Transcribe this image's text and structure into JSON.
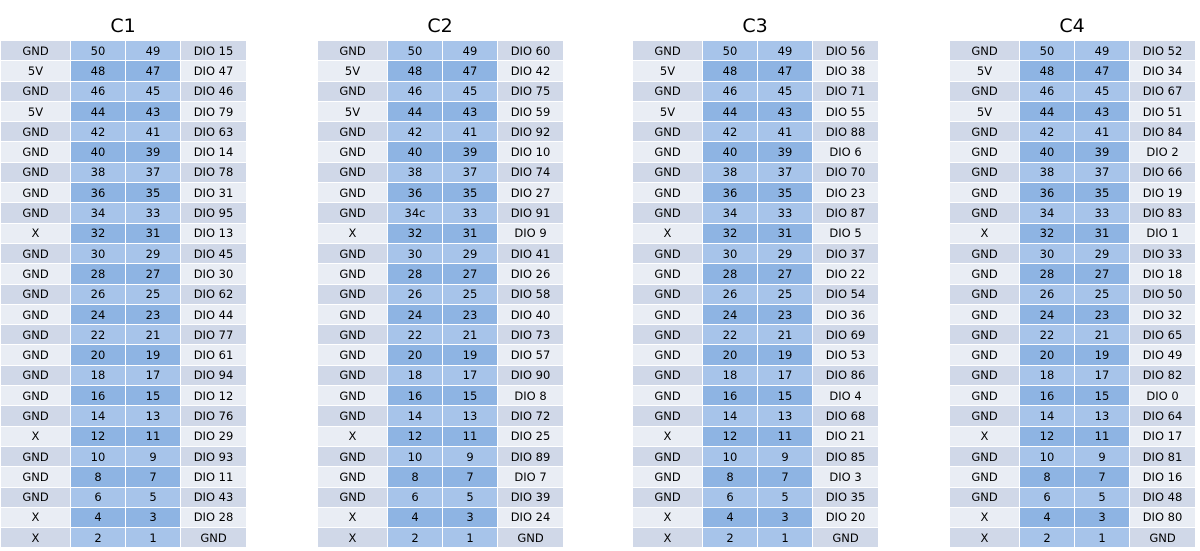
{
  "tables": [
    {
      "title": "C1",
      "rows": [
        [
          "GND",
          "50",
          "49",
          "DIO 15"
        ],
        [
          "5V",
          "48",
          "47",
          "DIO 47"
        ],
        [
          "GND",
          "46",
          "45",
          "DIO 46"
        ],
        [
          "5V",
          "44",
          "43",
          "DIO 79"
        ],
        [
          "GND",
          "42",
          "41",
          "DIO 63"
        ],
        [
          "GND",
          "40",
          "39",
          "DIO 14"
        ],
        [
          "GND",
          "38",
          "37",
          "DIO 78"
        ],
        [
          "GND",
          "36",
          "35",
          "DIO 31"
        ],
        [
          "GND",
          "34",
          "33",
          "DIO 95"
        ],
        [
          "X",
          "32",
          "31",
          "DIO 13"
        ],
        [
          "GND",
          "30",
          "29",
          "DIO 45"
        ],
        [
          "GND",
          "28",
          "27",
          "DIO 30"
        ],
        [
          "GND",
          "26",
          "25",
          "DIO 62"
        ],
        [
          "GND",
          "24",
          "23",
          "DIO 44"
        ],
        [
          "GND",
          "22",
          "21",
          "DIO 77"
        ],
        [
          "GND",
          "20",
          "19",
          "DIO 61"
        ],
        [
          "GND",
          "18",
          "17",
          "DIO 94"
        ],
        [
          "GND",
          "16",
          "15",
          "DIO 12"
        ],
        [
          "GND",
          "14",
          "13",
          "DIO 76"
        ],
        [
          "X",
          "12",
          "11",
          "DIO 29"
        ],
        [
          "GND",
          "10",
          "9",
          "DIO 93"
        ],
        [
          "GND",
          "8",
          "7",
          "DIO 11"
        ],
        [
          "GND",
          "6",
          "5",
          "DIO 43"
        ],
        [
          "X",
          "4",
          "3",
          "DIO 28"
        ],
        [
          "X",
          "2",
          "1",
          "GND"
        ]
      ]
    },
    {
      "title": "C2",
      "rows": [
        [
          "GND",
          "50",
          "49",
          "DIO 60"
        ],
        [
          "5V",
          "48",
          "47",
          "DIO 42"
        ],
        [
          "GND",
          "46",
          "45",
          "DIO 75"
        ],
        [
          "5V",
          "44",
          "43",
          "DIO 59"
        ],
        [
          "GND",
          "42",
          "41",
          "DIO 92"
        ],
        [
          "GND",
          "40",
          "39",
          "DIO 10"
        ],
        [
          "GND",
          "38",
          "37",
          "DIO 74"
        ],
        [
          "GND",
          "36",
          "35",
          "DIO 27"
        ],
        [
          "GND",
          "34c",
          "33",
          "DIO 91"
        ],
        [
          "X",
          "32",
          "31",
          "DIO 9"
        ],
        [
          "GND",
          "30",
          "29",
          "DIO 41"
        ],
        [
          "GND",
          "28",
          "27",
          "DIO 26"
        ],
        [
          "GND",
          "26",
          "25",
          "DIO 58"
        ],
        [
          "GND",
          "24",
          "23",
          "DIO 40"
        ],
        [
          "GND",
          "22",
          "21",
          "DIO 73"
        ],
        [
          "GND",
          "20",
          "19",
          "DIO 57"
        ],
        [
          "GND",
          "18",
          "17",
          "DIO 90"
        ],
        [
          "GND",
          "16",
          "15",
          "DIO 8"
        ],
        [
          "GND",
          "14",
          "13",
          "DIO 72"
        ],
        [
          "X",
          "12",
          "11",
          "DIO 25"
        ],
        [
          "GND",
          "10",
          "9",
          "DIO 89"
        ],
        [
          "GND",
          "8",
          "7",
          "DIO 7"
        ],
        [
          "GND",
          "6",
          "5",
          "DIO 39"
        ],
        [
          "X",
          "4",
          "3",
          "DIO 24"
        ],
        [
          "X",
          "2",
          "1",
          "GND"
        ]
      ]
    },
    {
      "title": "C3",
      "rows": [
        [
          "GND",
          "50",
          "49",
          "DIO 56"
        ],
        [
          "5V",
          "48",
          "47",
          "DIO 38"
        ],
        [
          "GND",
          "46",
          "45",
          "DIO 71"
        ],
        [
          "5V",
          "44",
          "43",
          "DIO 55"
        ],
        [
          "GND",
          "42",
          "41",
          "DIO 88"
        ],
        [
          "GND",
          "40",
          "39",
          "DIO 6"
        ],
        [
          "GND",
          "38",
          "37",
          "DIO 70"
        ],
        [
          "GND",
          "36",
          "35",
          "DIO 23"
        ],
        [
          "GND",
          "34",
          "33",
          "DIO 87"
        ],
        [
          "X",
          "32",
          "31",
          "DIO 5"
        ],
        [
          "GND",
          "30",
          "29",
          "DIO 37"
        ],
        [
          "GND",
          "28",
          "27",
          "DIO 22"
        ],
        [
          "GND",
          "26",
          "25",
          "DIO 54"
        ],
        [
          "GND",
          "24",
          "23",
          "DIO 36"
        ],
        [
          "GND",
          "22",
          "21",
          "DIO 69"
        ],
        [
          "GND",
          "20",
          "19",
          "DIO 53"
        ],
        [
          "GND",
          "18",
          "17",
          "DIO 86"
        ],
        [
          "GND",
          "16",
          "15",
          "DIO 4"
        ],
        [
          "GND",
          "14",
          "13",
          "DIO 68"
        ],
        [
          "X",
          "12",
          "11",
          "DIO 21"
        ],
        [
          "GND",
          "10",
          "9",
          "DIO 85"
        ],
        [
          "GND",
          "8",
          "7",
          "DIO 3"
        ],
        [
          "GND",
          "6",
          "5",
          "DIO 35"
        ],
        [
          "X",
          "4",
          "3",
          "DIO 20"
        ],
        [
          "X",
          "2",
          "1",
          "GND"
        ]
      ]
    },
    {
      "title": "C4",
      "rows": [
        [
          "GND",
          "50",
          "49",
          "DIO 52"
        ],
        [
          "5V",
          "48",
          "47",
          "DIO 34"
        ],
        [
          "GND",
          "46",
          "45",
          "DIO 67"
        ],
        [
          "5V",
          "44",
          "43",
          "DIO 51"
        ],
        [
          "GND",
          "42",
          "41",
          "DIO 84"
        ],
        [
          "GND",
          "40",
          "39",
          "DIO 2"
        ],
        [
          "GND",
          "38",
          "37",
          "DIO 66"
        ],
        [
          "GND",
          "36",
          "35",
          "DIO 19"
        ],
        [
          "GND",
          "34",
          "33",
          "DIO 83"
        ],
        [
          "X",
          "32",
          "31",
          "DIO 1"
        ],
        [
          "GND",
          "30",
          "29",
          "DIO 33"
        ],
        [
          "GND",
          "28",
          "27",
          "DIO 18"
        ],
        [
          "GND",
          "26",
          "25",
          "DIO 50"
        ],
        [
          "GND",
          "24",
          "23",
          "DIO 32"
        ],
        [
          "GND",
          "22",
          "21",
          "DIO 65"
        ],
        [
          "GND",
          "20",
          "19",
          "DIO 49"
        ],
        [
          "GND",
          "18",
          "17",
          "DIO 82"
        ],
        [
          "GND",
          "16",
          "15",
          "DIO 0"
        ],
        [
          "GND",
          "14",
          "13",
          "DIO 64"
        ],
        [
          "X",
          "12",
          "11",
          "DIO 17"
        ],
        [
          "GND",
          "10",
          "9",
          "DIO 81"
        ],
        [
          "GND",
          "8",
          "7",
          "DIO 16"
        ],
        [
          "GND",
          "6",
          "5",
          "DIO 48"
        ],
        [
          "X",
          "4",
          "3",
          "DIO 80"
        ],
        [
          "X",
          "2",
          "1",
          "GND"
        ]
      ]
    }
  ]
}
